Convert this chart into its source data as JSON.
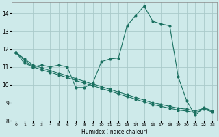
{
  "xlabel": "Humidex (Indice chaleur)",
  "background_color": "#ceeaea",
  "line_color": "#1a7060",
  "grid_color": "#aacaca",
  "series_main": {
    "x": [
      0,
      1,
      2,
      3,
      4,
      5,
      6,
      7,
      8,
      9,
      10,
      11,
      12,
      13,
      14,
      15,
      16,
      17,
      18,
      19,
      20,
      21,
      22,
      23
    ],
    "y": [
      11.8,
      11.2,
      11.0,
      11.1,
      11.0,
      11.1,
      11.0,
      9.85,
      9.85,
      10.1,
      11.3,
      11.45,
      11.5,
      13.3,
      13.85,
      14.4,
      13.55,
      13.4,
      13.3,
      10.45,
      9.1,
      8.3,
      8.75,
      8.55
    ]
  },
  "trend1": {
    "x": [
      0,
      1,
      2,
      3,
      4,
      5,
      6,
      7,
      8,
      9,
      10,
      11,
      12,
      13,
      14,
      15,
      16,
      17,
      18,
      19,
      20,
      21,
      22,
      23
    ],
    "y": [
      11.8,
      11.45,
      11.1,
      10.95,
      10.8,
      10.65,
      10.5,
      10.35,
      10.2,
      10.05,
      9.9,
      9.75,
      9.6,
      9.45,
      9.3,
      9.15,
      9.0,
      8.9,
      8.8,
      8.7,
      8.65,
      8.55,
      8.7,
      8.55
    ]
  },
  "trend2": {
    "x": [
      0,
      1,
      2,
      3,
      4,
      5,
      6,
      7,
      8,
      9,
      10,
      11,
      12,
      13,
      14,
      15,
      16,
      17,
      18,
      19,
      20,
      21,
      22,
      23
    ],
    "y": [
      11.8,
      11.35,
      11.0,
      10.85,
      10.7,
      10.55,
      10.4,
      10.25,
      10.1,
      9.95,
      9.8,
      9.65,
      9.5,
      9.35,
      9.2,
      9.05,
      8.9,
      8.8,
      8.7,
      8.6,
      8.55,
      8.45,
      8.65,
      8.5
    ]
  },
  "xlim": [
    -0.5,
    23.5
  ],
  "ylim": [
    8.0,
    14.6
  ],
  "yticks": [
    8,
    9,
    10,
    11,
    12,
    13,
    14
  ],
  "xticks": [
    0,
    1,
    2,
    3,
    4,
    5,
    6,
    7,
    8,
    9,
    10,
    11,
    12,
    13,
    14,
    15,
    16,
    17,
    18,
    19,
    20,
    21,
    22,
    23
  ]
}
